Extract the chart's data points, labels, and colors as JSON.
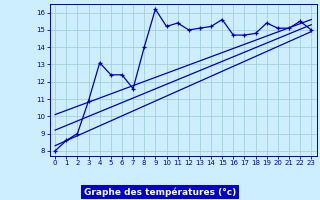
{
  "xlabel": "Graphe des températures (°c)",
  "background_color": "#cceeff",
  "plot_bg_color": "#cceeff",
  "xlabel_bg_color": "#0000cc",
  "xlabel_text_color": "#ffffff",
  "line_color": "#0000bb",
  "grid_color": "#99cccc",
  "xlim": [
    -0.5,
    23.5
  ],
  "ylim": [
    7.7,
    16.5
  ],
  "xticks": [
    0,
    1,
    2,
    3,
    4,
    5,
    6,
    7,
    8,
    9,
    10,
    11,
    12,
    13,
    14,
    15,
    16,
    17,
    18,
    19,
    20,
    21,
    22,
    23
  ],
  "yticks": [
    8,
    9,
    10,
    11,
    12,
    13,
    14,
    15,
    16
  ],
  "series1_x": [
    0,
    1,
    2,
    3,
    4,
    5,
    6,
    7,
    8,
    9,
    10,
    11,
    12,
    13,
    14,
    15,
    16,
    17,
    18,
    19,
    20,
    21,
    22,
    23
  ],
  "series1_y": [
    8.0,
    8.6,
    9.0,
    10.9,
    13.1,
    12.4,
    12.4,
    11.6,
    14.0,
    16.2,
    15.2,
    15.4,
    15.0,
    15.1,
    15.2,
    15.6,
    14.7,
    14.7,
    14.8,
    15.4,
    15.1,
    15.1,
    15.5,
    15.0
  ],
  "line1_x": [
    0,
    23
  ],
  "line1_y": [
    8.3,
    14.9
  ],
  "line2_x": [
    0,
    23
  ],
  "line2_y": [
    9.2,
    15.3
  ],
  "line3_x": [
    0,
    23
  ],
  "line3_y": [
    10.1,
    15.6
  ]
}
